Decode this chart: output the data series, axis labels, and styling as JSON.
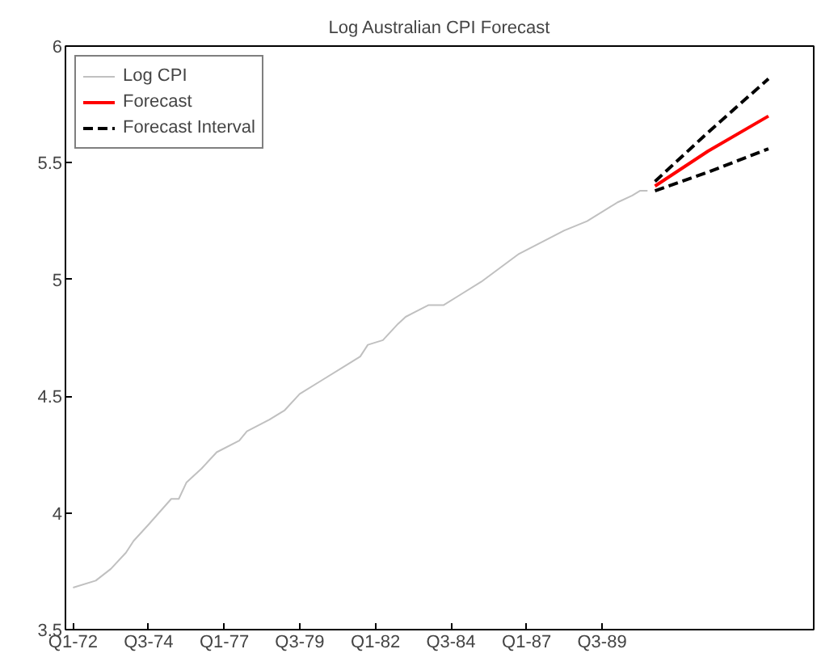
{
  "chart_data": {
    "type": "line",
    "title": "Log Australian CPI Forecast",
    "xlim": [
      "1971-10",
      "1996-07"
    ],
    "ylim": [
      3.5,
      6
    ],
    "xticks": [
      {
        "value": "1972-01",
        "label": "Q1-72"
      },
      {
        "value": "1974-07",
        "label": "Q3-74"
      },
      {
        "value": "1977-01",
        "label": "Q1-77"
      },
      {
        "value": "1979-07",
        "label": "Q3-79"
      },
      {
        "value": "1982-01",
        "label": "Q1-82"
      },
      {
        "value": "1984-07",
        "label": "Q3-84"
      },
      {
        "value": "1987-01",
        "label": "Q1-87"
      },
      {
        "value": "1989-07",
        "label": "Q3-89"
      }
    ],
    "yticks": [
      3.5,
      4,
      4.5,
      5,
      5.5,
      6
    ],
    "grid": false,
    "legend": "top left",
    "series": [
      {
        "name": "Log CPI",
        "color": "#c0c0c0",
        "line_style": "solid",
        "x": [
          "1972-01",
          "1972-10",
          "1973-04",
          "1973-10",
          "1974-01",
          "1974-07",
          "1975-04",
          "1975-07",
          "1975-10",
          "1976-04",
          "1976-10",
          "1977-07",
          "1977-10",
          "1978-07",
          "1979-01",
          "1979-07",
          "1980-04",
          "1981-01",
          "1981-07",
          "1981-10",
          "1982-04",
          "1982-10",
          "1983-01",
          "1983-10",
          "1984-04",
          "1984-10",
          "1985-07",
          "1986-10",
          "1988-04",
          "1989-01",
          "1990-01",
          "1990-07",
          "1990-10",
          "1991-01"
        ],
        "values": [
          3.68,
          3.71,
          3.76,
          3.83,
          3.88,
          3.95,
          4.06,
          4.06,
          4.13,
          4.19,
          4.26,
          4.31,
          4.35,
          4.4,
          4.44,
          4.51,
          4.57,
          4.63,
          4.67,
          4.72,
          4.74,
          4.81,
          4.84,
          4.89,
          4.89,
          4.93,
          4.99,
          5.11,
          5.21,
          5.25,
          5.33,
          5.36,
          5.38,
          5.38
        ]
      },
      {
        "name": "Forecast",
        "color": "#ff0000",
        "line_style": "solid",
        "x": [
          "1991-04",
          "1993-01",
          "1995-01"
        ],
        "values": [
          5.4,
          5.55,
          5.7
        ]
      },
      {
        "name": "Forecast Interval",
        "color": "#000000",
        "line_style": "dashed",
        "x": [
          "1991-04",
          "1993-01",
          "1995-01"
        ],
        "values": [
          5.42,
          5.63,
          5.86
        ]
      },
      {
        "color": "#000000",
        "line_style": "dashed",
        "x": [
          "1991-04",
          "1993-01",
          "1995-01"
        ],
        "values": [
          5.38,
          5.46,
          5.56
        ]
      }
    ]
  }
}
